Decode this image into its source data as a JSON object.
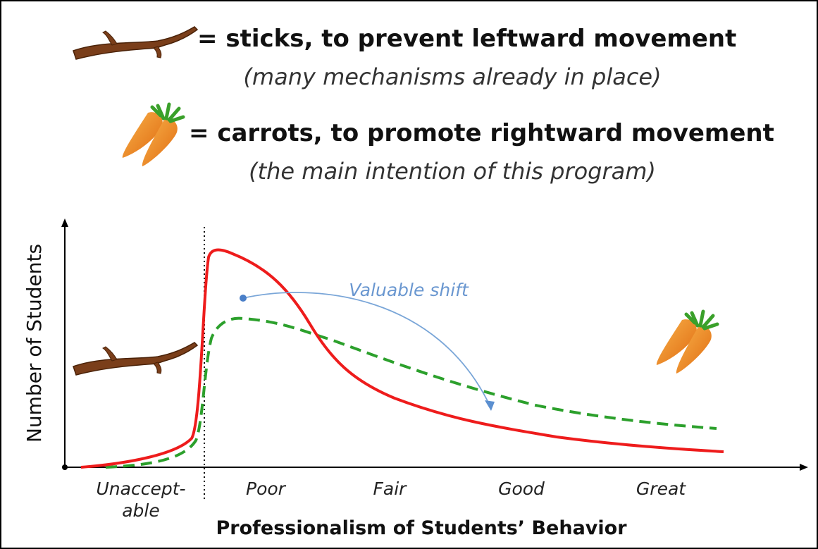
{
  "legend": {
    "sticks": "= sticks, to prevent leftward movement",
    "sticks_note": "(many mechanisms already in place)",
    "carrots": "= carrots, to promote rightward movement",
    "carrots_note": "(the main intention of this program)"
  },
  "chart": {
    "y_axis_title": "Number of Students",
    "x_axis_title": "Professionalism of Students’ Behavior",
    "unacceptable_label": [
      "Unaccept-",
      "able"
    ],
    "labels": [
      "Poor",
      "Fair",
      "Good",
      "Great"
    ],
    "annotation": "Valuable shift"
  }
}
